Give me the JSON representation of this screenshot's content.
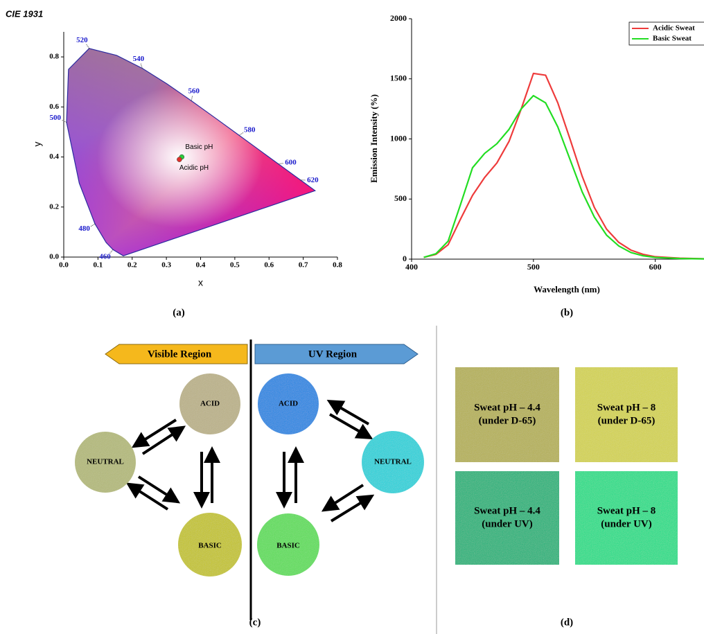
{
  "chart_data": [
    {
      "type": "cie",
      "title": "CIE 1931",
      "xlabel": "x",
      "ylabel": "y",
      "panel_label": "(a)",
      "xlim": [
        0,
        0.8
      ],
      "ylim": [
        0,
        0.9
      ],
      "xticks": [
        {
          "value": 0,
          "label": "0.0"
        },
        {
          "value": 0.1,
          "label": "0.1"
        },
        {
          "value": 0.2,
          "label": "0.2"
        },
        {
          "value": 0.3,
          "label": "0.3"
        },
        {
          "value": 0.4,
          "label": "0.4"
        },
        {
          "value": 0.5,
          "label": "0.5"
        },
        {
          "value": 0.6,
          "label": "0.6"
        },
        {
          "value": 0.7,
          "label": "0.7"
        },
        {
          "value": 0.8,
          "label": "0.8"
        }
      ],
      "yticks": [
        {
          "value": 0,
          "label": "0.0"
        },
        {
          "value": 0.2,
          "label": "0.2"
        },
        {
          "value": 0.4,
          "label": "0.4"
        },
        {
          "value": 0.6,
          "label": "0.6"
        },
        {
          "value": 0.8,
          "label": "0.8"
        }
      ],
      "locus": {
        "x": [
          0.1741,
          0.144,
          0.1241,
          0.0913,
          0.0454,
          0.0082,
          0.0139,
          0.0743,
          0.1547,
          0.2296,
          0.3016,
          0.3731,
          0.4441,
          0.5125,
          0.5752,
          0.627,
          0.6915,
          0.7347
        ],
        "y": [
          0.005,
          0.0297,
          0.0578,
          0.1327,
          0.295,
          0.5384,
          0.7502,
          0.8338,
          0.8059,
          0.7543,
          0.6923,
          0.6245,
          0.5547,
          0.4866,
          0.4242,
          0.3725,
          0.3083,
          0.2653
        ],
        "color": "#2a2aa0"
      },
      "locus_labels": {
        "text": [
          "460",
          "480",
          "500",
          "520",
          "540",
          "560",
          "580",
          "600",
          "620"
        ],
        "x": [
          0.144,
          0.0913,
          0.0082,
          0.0743,
          0.2296,
          0.3731,
          0.5125,
          0.627,
          0.6915
        ],
        "y": [
          0.0297,
          0.1327,
          0.5384,
          0.8338,
          0.7543,
          0.6245,
          0.4866,
          0.3725,
          0.3083
        ],
        "color": "#1a1acc"
      },
      "series": [
        {
          "name": "Basic pH",
          "color": "#2ecc40",
          "x": [
            0.345
          ],
          "y": [
            0.4
          ]
        },
        {
          "name": "Acidic pH",
          "color": "#e0302a",
          "x": [
            0.338
          ],
          "y": [
            0.39
          ]
        }
      ]
    },
    {
      "type": "line",
      "xlabel": "Wavelength (nm)",
      "ylabel": "Emission Intensity (%)",
      "panel_label": "(b)",
      "xlim": [
        400,
        640
      ],
      "ylim": [
        0,
        2000
      ],
      "xticks": [
        400,
        500,
        600
      ],
      "yticks": [
        0,
        500,
        1000,
        1500,
        2000
      ],
      "x": [
        410,
        420,
        430,
        440,
        450,
        460,
        470,
        480,
        490,
        500,
        510,
        520,
        530,
        540,
        550,
        560,
        570,
        580,
        590,
        600,
        620,
        640
      ],
      "series": [
        {
          "name": "Acidic Sweat",
          "color": "#ee3b3b",
          "values": [
            15,
            40,
            120,
            330,
            530,
            680,
            800,
            980,
            1250,
            1545,
            1530,
            1300,
            1000,
            690,
            430,
            250,
            140,
            75,
            40,
            20,
            8,
            3
          ]
        },
        {
          "name": "Basic Sweat",
          "color": "#22dd22",
          "values": [
            15,
            45,
            150,
            450,
            760,
            880,
            960,
            1080,
            1250,
            1360,
            1300,
            1100,
            830,
            560,
            350,
            200,
            110,
            55,
            28,
            14,
            5,
            2
          ]
        }
      ],
      "legend": "upper right"
    }
  ],
  "panel_c": {
    "label": "(c)",
    "visible_region": "Visible Region",
    "uv_region": "UV Region",
    "visible": [
      "ACID",
      "NEUTRAL",
      "BASIC"
    ],
    "uv": [
      "ACID",
      "NEUTRAL",
      "BASIC"
    ]
  },
  "panel_d": {
    "label": "(d)",
    "swatches": [
      {
        "lines": [
          "Sweat pH – 4.4",
          "(under D-65)"
        ]
      },
      {
        "lines": [
          "Sweat pH – 8",
          "(under D-65)"
        ]
      },
      {
        "lines": [
          "Sweat pH – 4.4",
          "(under UV)"
        ]
      },
      {
        "lines": [
          "Sweat pH – 8",
          "(under UV)"
        ]
      }
    ]
  }
}
